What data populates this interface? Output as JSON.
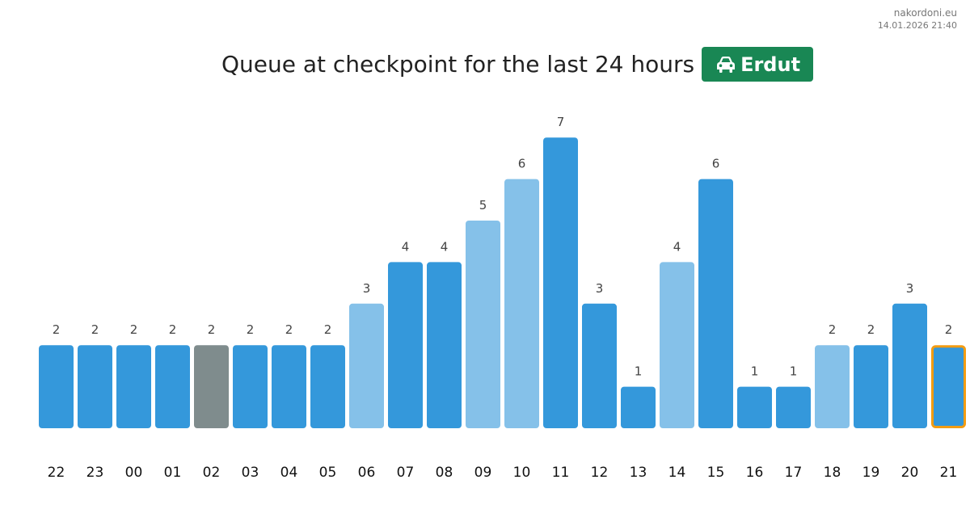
{
  "brand": {
    "site": "nakordoni.eu",
    "timestamp": "14.01.2026 21:40"
  },
  "title": {
    "text": "Queue at checkpoint for the last 24 hours",
    "badge_label": "Erdut",
    "badge_icon": "car-icon",
    "badge_color": "#198754"
  },
  "colors": {
    "normal": "#3498db",
    "light": "#85c1e9",
    "gray": "#7f8c8d",
    "highlight_border": "#f39c12"
  },
  "chart_data": {
    "type": "bar",
    "title": "Queue at checkpoint for the last 24 hours",
    "xlabel": "",
    "ylabel": "",
    "ylim": [
      0,
      7
    ],
    "grid": false,
    "categories": [
      "22",
      "23",
      "00",
      "01",
      "02",
      "03",
      "04",
      "05",
      "06",
      "07",
      "08",
      "09",
      "10",
      "11",
      "12",
      "13",
      "14",
      "15",
      "16",
      "17",
      "18",
      "19",
      "20",
      "21"
    ],
    "values": [
      2,
      2,
      2,
      2,
      2,
      2,
      2,
      2,
      3,
      4,
      4,
      5,
      6,
      7,
      3,
      1,
      4,
      6,
      1,
      1,
      2,
      2,
      3,
      2
    ],
    "bar_styles": [
      "normal",
      "normal",
      "normal",
      "normal",
      "gray",
      "normal",
      "normal",
      "normal",
      "light",
      "normal",
      "normal",
      "light",
      "light",
      "normal",
      "normal",
      "normal",
      "light",
      "normal",
      "normal",
      "normal",
      "light",
      "normal",
      "normal",
      "highlight"
    ]
  }
}
